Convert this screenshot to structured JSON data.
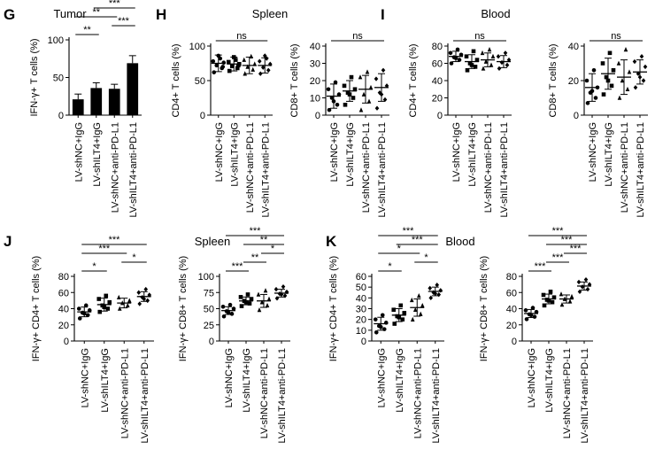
{
  "headers": [
    {
      "letter": "G",
      "title": "Tumor"
    },
    {
      "letter": "H",
      "title": "Spleen"
    },
    {
      "letter": "I",
      "title": "Blood"
    },
    {
      "letter": "J",
      "title": "Spleen"
    },
    {
      "letter": "K",
      "title": "Blood"
    }
  ],
  "chart_data": [
    {
      "panel": "G",
      "type": "bar",
      "ylabel": "IFN-γ+ T cells (%)",
      "ylim": [
        0,
        100
      ],
      "yticks": [
        0,
        50,
        100
      ],
      "categories": [
        "LV-shNC+IgG",
        "LV-shILT4+IgG",
        "LV-shNC+anti-PD-L1",
        "LV-shILT4+anti-PD-L1"
      ],
      "values": [
        21,
        36,
        35,
        69
      ],
      "errors": [
        7,
        7,
        6,
        10
      ],
      "annotations": [
        {
          "from": 0,
          "to": 1,
          "label": "**"
        },
        {
          "from": 0,
          "to": 2,
          "label": "**"
        },
        {
          "from": 2,
          "to": 3,
          "label": "***"
        },
        {
          "from": 1,
          "to": 3,
          "label": "***"
        },
        {
          "from": 0,
          "to": 3,
          "label": "***"
        }
      ]
    },
    {
      "panel": "H",
      "type": "scatter",
      "ylabel": "CD4+ T cells (%)",
      "ylim": [
        0,
        100
      ],
      "yticks": [
        0,
        50,
        100
      ],
      "categories": [
        "LV-shNC+IgG",
        "LV-shILT4+IgG",
        "LV-shNC+anti-PD-L1",
        "LV-shILT4+anti-PD-L1"
      ],
      "series": [
        {
          "mean": 75,
          "sd": 12,
          "points": [
            62,
            68,
            72,
            76,
            78,
            82,
            86,
            70
          ]
        },
        {
          "mean": 74,
          "sd": 10,
          "points": [
            64,
            68,
            71,
            74,
            77,
            80,
            84,
            72
          ]
        },
        {
          "mean": 72,
          "sd": 12,
          "points": [
            60,
            66,
            70,
            74,
            80,
            85
          ]
        },
        {
          "mean": 72,
          "sd": 11,
          "points": [
            60,
            65,
            69,
            74,
            78,
            82,
            86
          ]
        }
      ],
      "annotations": [
        {
          "from": 0,
          "to": 3,
          "label": "ns"
        }
      ]
    },
    {
      "panel": "H",
      "type": "scatter",
      "ylabel": "CD8+ T cells (%)",
      "ylim": [
        0,
        40
      ],
      "yticks": [
        0,
        10,
        20,
        30,
        40
      ],
      "categories": [
        "LV-shNC+IgG",
        "LV-shILT4+IgG",
        "LV-shNC+anti-PD-L1",
        "LV-shILT4+anti-PD-L1"
      ],
      "series": [
        {
          "mean": 11,
          "sd": 7,
          "points": [
            3,
            6,
            10,
            12,
            15,
            19,
            8
          ]
        },
        {
          "mean": 14,
          "sd": 6,
          "points": [
            6,
            10,
            13,
            15,
            17,
            22,
            12
          ]
        },
        {
          "mean": 15,
          "sd": 8,
          "points": [
            3,
            8,
            12,
            16,
            22,
            25
          ]
        },
        {
          "mean": 16,
          "sd": 8,
          "points": [
            4,
            9,
            13,
            17,
            21,
            26,
            12
          ]
        }
      ],
      "annotations": [
        {
          "from": 0,
          "to": 3,
          "label": "ns"
        }
      ]
    },
    {
      "panel": "I",
      "type": "scatter",
      "ylabel": "CD4+ T cells (%)",
      "ylim": [
        0,
        80
      ],
      "yticks": [
        0,
        20,
        40,
        60,
        80
      ],
      "categories": [
        "LV-shNC+IgG",
        "LV-shILT4+IgG",
        "LV-shNC+anti-PD-L1",
        "LV-shILT4+anti-PD-L1"
      ],
      "series": [
        {
          "mean": 68,
          "sd": 6,
          "points": [
            60,
            64,
            67,
            70,
            72,
            76,
            66
          ]
        },
        {
          "mean": 62,
          "sd": 8,
          "points": [
            52,
            56,
            60,
            64,
            68,
            74,
            58
          ]
        },
        {
          "mean": 64,
          "sd": 8,
          "points": [
            54,
            58,
            62,
            68,
            72,
            76
          ]
        },
        {
          "mean": 62,
          "sd": 7,
          "points": [
            54,
            58,
            61,
            64,
            68,
            72
          ]
        }
      ],
      "annotations": [
        {
          "from": 0,
          "to": 3,
          "label": "ns"
        }
      ]
    },
    {
      "panel": "I",
      "type": "scatter",
      "ylabel": "CD8+ T cells (%)",
      "ylim": [
        0,
        40
      ],
      "yticks": [
        0,
        20,
        40
      ],
      "categories": [
        "LV-shNC+IgG",
        "LV-shILT4+IgG",
        "LV-shNC+anti-PD-L1",
        "LV-shILT4+anti-PD-L1"
      ],
      "series": [
        {
          "mean": 16,
          "sd": 8,
          "points": [
            7,
            10,
            13,
            16,
            20,
            26,
            14
          ]
        },
        {
          "mean": 24,
          "sd": 9,
          "points": [
            12,
            17,
            22,
            26,
            30,
            36,
            20
          ]
        },
        {
          "mean": 22,
          "sd": 10,
          "points": [
            10,
            15,
            20,
            25,
            30,
            38
          ]
        },
        {
          "mean": 25,
          "sd": 7,
          "points": [
            16,
            20,
            24,
            28,
            31,
            34,
            22
          ]
        }
      ],
      "annotations": [
        {
          "from": 0,
          "to": 3,
          "label": "ns"
        }
      ]
    },
    {
      "panel": "J",
      "type": "scatter",
      "ylabel": "IFN-γ+ CD4+ T cells (%)",
      "ylim": [
        0,
        80
      ],
      "yticks": [
        0,
        20,
        40,
        60,
        80
      ],
      "categories": [
        "LV-shNC+IgG",
        "LV-shILT4+IgG",
        "LV-shNC+anti-PD-L1",
        "LV-shILT4+anti-PD-L1"
      ],
      "series": [
        {
          "mean": 36,
          "sd": 6,
          "points": [
            28,
            32,
            35,
            38,
            40,
            44,
            34
          ]
        },
        {
          "mean": 45,
          "sd": 8,
          "points": [
            36,
            40,
            44,
            48,
            52,
            56,
            42
          ]
        },
        {
          "mean": 47,
          "sd": 6,
          "points": [
            40,
            44,
            47,
            50,
            54
          ]
        },
        {
          "mean": 55,
          "sd": 6,
          "points": [
            46,
            50,
            54,
            57,
            60,
            64,
            52
          ]
        }
      ],
      "annotations": [
        {
          "from": 0,
          "to": 1,
          "label": "*"
        },
        {
          "from": 0,
          "to": 2,
          "label": "***"
        },
        {
          "from": 2,
          "to": 3,
          "label": "*"
        },
        {
          "from": 0,
          "to": 3,
          "label": "***"
        }
      ]
    },
    {
      "panel": "J",
      "type": "scatter",
      "ylabel": "IFN-γ+ CD8+ T cells (%)",
      "ylim": [
        0,
        100
      ],
      "yticks": [
        0,
        25,
        50,
        75,
        100
      ],
      "categories": [
        "LV-shNC+IgG",
        "LV-shILT4+IgG",
        "LV-shNC+anti-PD-L1",
        "LV-shILT4+anti-PD-L1"
      ],
      "series": [
        {
          "mean": 47,
          "sd": 6,
          "points": [
            38,
            42,
            46,
            50,
            53,
            56,
            44
          ]
        },
        {
          "mean": 62,
          "sd": 6,
          "points": [
            54,
            58,
            62,
            65,
            68,
            72,
            60
          ]
        },
        {
          "mean": 62,
          "sd": 10,
          "points": [
            48,
            55,
            60,
            65,
            72,
            78
          ]
        },
        {
          "mean": 74,
          "sd": 6,
          "points": [
            66,
            70,
            73,
            76,
            80,
            84,
            72
          ]
        }
      ],
      "annotations": [
        {
          "from": 0,
          "to": 1,
          "label": "***"
        },
        {
          "from": 1,
          "to": 2,
          "label": "**"
        },
        {
          "from": 2,
          "to": 3,
          "label": "*"
        },
        {
          "from": 1,
          "to": 3,
          "label": "**"
        },
        {
          "from": 0,
          "to": 3,
          "label": "***"
        }
      ]
    },
    {
      "panel": "K",
      "type": "scatter",
      "ylabel": "IFN-γ+ CD4+ T cells (%)",
      "ylim": [
        0,
        60
      ],
      "yticks": [
        0,
        10,
        20,
        30,
        40,
        50,
        60
      ],
      "categories": [
        "LV-shNC+IgG",
        "LV-shILT4+IgG",
        "LV-shNC+anti-PD-L1",
        "LV-shILT4+anti-PD-L1"
      ],
      "series": [
        {
          "mean": 16,
          "sd": 6,
          "points": [
            8,
            11,
            14,
            17,
            20,
            24,
            13
          ]
        },
        {
          "mean": 24,
          "sd": 6,
          "points": [
            16,
            20,
            23,
            26,
            29,
            33,
            22
          ]
        },
        {
          "mean": 31,
          "sd": 8,
          "points": [
            20,
            25,
            29,
            33,
            38,
            42
          ]
        },
        {
          "mean": 46,
          "sd": 4,
          "points": [
            40,
            43,
            45,
            47,
            49,
            52,
            44
          ]
        }
      ],
      "annotations": [
        {
          "from": 0,
          "to": 1,
          "label": "*"
        },
        {
          "from": 0,
          "to": 2,
          "label": "*"
        },
        {
          "from": 2,
          "to": 3,
          "label": "*"
        },
        {
          "from": 1,
          "to": 3,
          "label": "***"
        },
        {
          "from": 0,
          "to": 3,
          "label": "***"
        }
      ]
    },
    {
      "panel": "K",
      "type": "scatter",
      "ylabel": "IFN-γ+ CD8+ T cells (%)",
      "ylim": [
        0,
        80
      ],
      "yticks": [
        0,
        20,
        40,
        60,
        80
      ],
      "categories": [
        "LV-shNC+IgG",
        "LV-shILT4+IgG",
        "LV-shNC+anti-PD-L1",
        "LV-shILT4+anti-PD-L1"
      ],
      "series": [
        {
          "mean": 34,
          "sd": 5,
          "points": [
            27,
            30,
            33,
            36,
            38,
            41,
            32
          ]
        },
        {
          "mean": 52,
          "sd": 6,
          "points": [
            44,
            48,
            51,
            54,
            57,
            61,
            50
          ]
        },
        {
          "mean": 52,
          "sd": 5,
          "points": [
            45,
            49,
            52,
            55,
            58
          ]
        },
        {
          "mean": 68,
          "sd": 5,
          "points": [
            61,
            64,
            67,
            70,
            73,
            76
          ]
        }
      ],
      "annotations": [
        {
          "from": 0,
          "to": 1,
          "label": "***"
        },
        {
          "from": 1,
          "to": 2,
          "label": "***"
        },
        {
          "from": 2,
          "to": 3,
          "label": "***"
        },
        {
          "from": 1,
          "to": 3,
          "label": "***"
        },
        {
          "from": 0,
          "to": 3,
          "label": "***"
        }
      ]
    }
  ]
}
